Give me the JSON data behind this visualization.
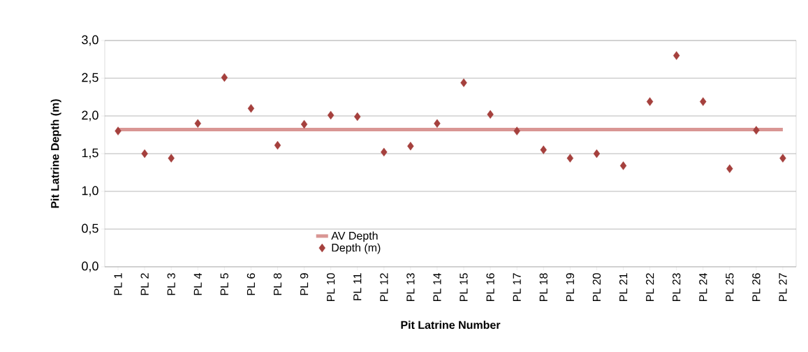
{
  "chart_data": {
    "type": "scatter",
    "xlabel": "Pit Latrine Number",
    "ylabel": "Pit Latrine Depth (m)",
    "categories": [
      "PL 1",
      "PL 2",
      "PL 3",
      "PL 4",
      "PL 5",
      "PL 6",
      "PL 8",
      "PL 9",
      "PL 10",
      "PL 11",
      "PL 12",
      "PL 13",
      "PL 14",
      "PL 15",
      "PL 16",
      "PL 17",
      "PL 18",
      "PL 19",
      "PL 20",
      "PL 21",
      "PL 22",
      "PL 23",
      "PL 24",
      "PL 25",
      "PL 26",
      "PL 27"
    ],
    "series": [
      {
        "name": "AV Depth",
        "type": "line",
        "color": "#d99694",
        "marker": "none",
        "values": [
          1.82,
          1.82,
          1.82,
          1.82,
          1.82,
          1.82,
          1.82,
          1.82,
          1.82,
          1.82,
          1.82,
          1.82,
          1.82,
          1.82,
          1.82,
          1.82,
          1.82,
          1.82,
          1.82,
          1.82,
          1.82,
          1.82,
          1.82,
          1.82,
          1.82,
          1.82
        ]
      },
      {
        "name": "Depth (m)",
        "color": "#a5403d",
        "marker": "diamond",
        "values": [
          1.8,
          1.5,
          1.44,
          1.9,
          2.51,
          2.1,
          1.61,
          1.89,
          2.01,
          1.99,
          1.52,
          1.6,
          1.9,
          2.44,
          2.02,
          1.8,
          1.55,
          1.44,
          1.5,
          1.34,
          2.19,
          2.8,
          2.19,
          1.3,
          1.81,
          1.44
        ]
      }
    ],
    "ylim": [
      0,
      3
    ],
    "yticks": [
      {
        "value": 0,
        "label": "0,0"
      },
      {
        "value": 0.5,
        "label": "0,5"
      },
      {
        "value": 1,
        "label": "1,0"
      },
      {
        "value": 1.5,
        "label": "1,5"
      },
      {
        "value": 2,
        "label": "2,0"
      },
      {
        "value": 2.5,
        "label": "2,5"
      },
      {
        "value": 3,
        "label": "3,0"
      }
    ],
    "grid": "y",
    "legend": "bottom"
  }
}
